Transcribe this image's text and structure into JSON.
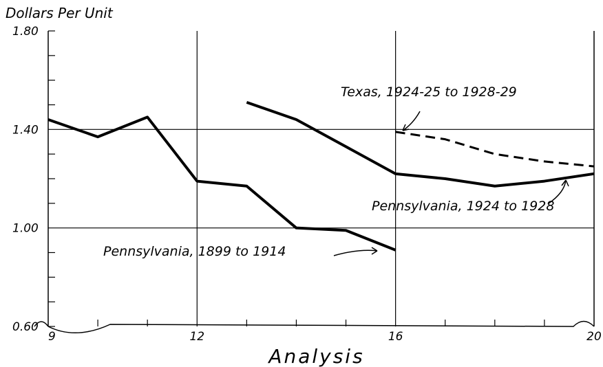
{
  "chart_data": {
    "type": "line",
    "y_axis_title": "Dollars Per Unit",
    "x_axis_title": "Analysis",
    "x": [
      9,
      10,
      11,
      12,
      13,
      14,
      15,
      16,
      17,
      18,
      19,
      20
    ],
    "series": [
      {
        "name": "Pennsylvania, 1899 to 1914",
        "color": "#000000",
        "dashed": false,
        "values": [
          1.44,
          1.37,
          1.45,
          1.19,
          1.17,
          1.0,
          0.99,
          0.91,
          null,
          null,
          null,
          null
        ]
      },
      {
        "name": "Pennsylvania, 1924 to 1928",
        "color": "#000000",
        "dashed": false,
        "values": [
          null,
          null,
          null,
          null,
          1.51,
          1.44,
          1.33,
          1.22,
          1.2,
          1.17,
          1.19,
          1.22
        ]
      },
      {
        "name": "Texas, 1924-25 to 1928-29",
        "color": "#000000",
        "dashed": true,
        "values": [
          null,
          null,
          null,
          null,
          null,
          null,
          null,
          1.39,
          1.36,
          1.3,
          1.27,
          1.25
        ]
      }
    ],
    "xlim": [
      9,
      20
    ],
    "ylim": [
      0.6,
      1.8
    ],
    "xticks": [
      9,
      12,
      16,
      20
    ],
    "yticks": [
      {
        "value": 0.6,
        "label": "0.60"
      },
      {
        "value": 1.0,
        "label": "1.00"
      },
      {
        "value": 1.4,
        "label": "1.40"
      },
      {
        "value": 1.8,
        "label": "1.80"
      }
    ],
    "x_minor_ticks": [
      10,
      11,
      13,
      14,
      15,
      17,
      18,
      19
    ],
    "y_minor_ticks": [
      0.7,
      0.8,
      0.9,
      1.1,
      1.2,
      1.3,
      1.5,
      1.6,
      1.7
    ],
    "grid": true
  }
}
